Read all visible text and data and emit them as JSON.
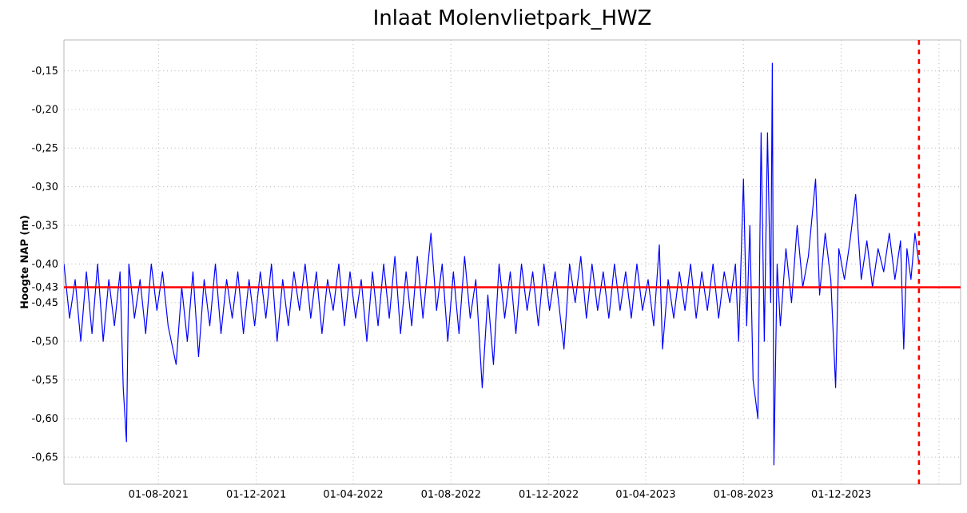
{
  "chart_data": {
    "type": "line",
    "title": "Inlaat Molenvlietpark_HWZ",
    "ylabel": "Hoogte NAP (m)",
    "color": "#0000ff",
    "grid": true,
    "xlim": [
      "2021-04-05",
      "2024-04-28"
    ],
    "ylim": [
      -0.685,
      -0.11
    ],
    "xticks": [
      {
        "value": "2021-08-01",
        "label": "01-08-2021"
      },
      {
        "value": "2021-12-01",
        "label": "01-12-2021"
      },
      {
        "value": "2022-04-01",
        "label": "01-04-2022"
      },
      {
        "value": "2022-08-01",
        "label": "01-08-2022"
      },
      {
        "value": "2022-12-01",
        "label": "01-12-2022"
      },
      {
        "value": "2023-04-01",
        "label": "01-04-2023"
      },
      {
        "value": "2023-08-01",
        "label": "01-08-2023"
      },
      {
        "value": "2023-12-01",
        "label": "01-12-2023"
      },
      {
        "value": "2024-04-01",
        "label": null
      }
    ],
    "yticks": [
      {
        "value": -0.15,
        "label": "-0,15"
      },
      {
        "value": -0.2,
        "label": "-0,20"
      },
      {
        "value": -0.25,
        "label": "-0,25"
      },
      {
        "value": -0.3,
        "label": "-0,30"
      },
      {
        "value": -0.35,
        "label": "-0,35"
      },
      {
        "value": -0.4,
        "label": "-0,40"
      },
      {
        "value": -0.43,
        "label": "-0,43"
      },
      {
        "value": -0.45,
        "label": "-0,45"
      },
      {
        "value": -0.5,
        "label": "-0,50"
      },
      {
        "value": -0.55,
        "label": "-0,55"
      },
      {
        "value": -0.6,
        "label": "-0,60"
      },
      {
        "value": -0.65,
        "label": "-0,65"
      }
    ],
    "ref_lines": [
      {
        "axis": "y",
        "value": -0.43,
        "color": "#ff0000",
        "line_style": "solid"
      },
      {
        "axis": "x",
        "value": "2024-03-07",
        "color": "#ff0000",
        "line_style": "dashed"
      }
    ],
    "x": [
      "2021-04-05",
      "2021-04-12",
      "2021-04-19",
      "2021-04-26",
      "2021-05-03",
      "2021-05-10",
      "2021-05-17",
      "2021-05-24",
      "2021-05-31",
      "2021-06-07",
      "2021-06-14",
      "2021-06-18",
      "2021-06-22",
      "2021-06-25",
      "2021-07-02",
      "2021-07-09",
      "2021-07-16",
      "2021-07-23",
      "2021-07-30",
      "2021-08-06",
      "2021-08-13",
      "2021-08-23",
      "2021-08-30",
      "2021-09-06",
      "2021-09-13",
      "2021-09-20",
      "2021-09-27",
      "2021-10-04",
      "2021-10-11",
      "2021-10-18",
      "2021-10-25",
      "2021-11-01",
      "2021-11-08",
      "2021-11-15",
      "2021-11-22",
      "2021-11-29",
      "2021-12-06",
      "2021-12-13",
      "2021-12-20",
      "2021-12-27",
      "2022-01-03",
      "2022-01-10",
      "2022-01-17",
      "2022-01-24",
      "2022-01-31",
      "2022-02-07",
      "2022-02-14",
      "2022-02-21",
      "2022-02-28",
      "2022-03-07",
      "2022-03-14",
      "2022-03-21",
      "2022-03-28",
      "2022-04-04",
      "2022-04-11",
      "2022-04-18",
      "2022-04-25",
      "2022-05-02",
      "2022-05-09",
      "2022-05-16",
      "2022-05-23",
      "2022-05-30",
      "2022-06-06",
      "2022-06-13",
      "2022-06-20",
      "2022-06-27",
      "2022-07-07",
      "2022-07-14",
      "2022-07-21",
      "2022-07-28",
      "2022-08-04",
      "2022-08-11",
      "2022-08-18",
      "2022-08-25",
      "2022-09-01",
      "2022-09-09",
      "2022-09-16",
      "2022-09-23",
      "2022-09-30",
      "2022-10-07",
      "2022-10-14",
      "2022-10-21",
      "2022-10-28",
      "2022-11-04",
      "2022-11-11",
      "2022-11-18",
      "2022-11-25",
      "2022-12-02",
      "2022-12-09",
      "2022-12-20",
      "2022-12-27",
      "2023-01-03",
      "2023-01-10",
      "2023-01-17",
      "2023-01-24",
      "2023-01-31",
      "2023-02-07",
      "2023-02-14",
      "2023-02-21",
      "2023-02-28",
      "2023-03-07",
      "2023-03-14",
      "2023-03-21",
      "2023-03-28",
      "2023-04-04",
      "2023-04-11",
      "2023-04-18",
      "2023-04-22",
      "2023-04-29",
      "2023-05-06",
      "2023-05-13",
      "2023-05-20",
      "2023-05-27",
      "2023-06-03",
      "2023-06-10",
      "2023-06-17",
      "2023-06-24",
      "2023-07-01",
      "2023-07-08",
      "2023-07-15",
      "2023-07-22",
      "2023-07-26",
      "2023-08-01",
      "2023-08-05",
      "2023-08-09",
      "2023-08-13",
      "2023-08-19",
      "2023-08-23",
      "2023-08-27",
      "2023-08-31",
      "2023-09-04",
      "2023-09-06",
      "2023-09-08",
      "2023-09-12",
      "2023-09-16",
      "2023-09-23",
      "2023-09-30",
      "2023-10-07",
      "2023-10-14",
      "2023-10-21",
      "2023-10-30",
      "2023-11-04",
      "2023-11-11",
      "2023-11-18",
      "2023-11-24",
      "2023-11-28",
      "2023-12-05",
      "2023-12-12",
      "2023-12-19",
      "2023-12-26",
      "2024-01-02",
      "2024-01-09",
      "2024-01-16",
      "2024-01-23",
      "2024-01-30",
      "2024-02-06",
      "2024-02-13",
      "2024-02-17",
      "2024-02-21",
      "2024-02-26",
      "2024-03-02",
      "2024-03-07"
    ],
    "values": [
      -0.4,
      -0.47,
      -0.42,
      -0.5,
      -0.41,
      -0.49,
      -0.4,
      -0.5,
      -0.42,
      -0.48,
      -0.41,
      -0.56,
      -0.63,
      -0.4,
      -0.47,
      -0.42,
      -0.49,
      -0.4,
      -0.46,
      -0.41,
      -0.48,
      -0.53,
      -0.43,
      -0.5,
      -0.41,
      -0.52,
      -0.42,
      -0.48,
      -0.4,
      -0.49,
      -0.42,
      -0.47,
      -0.41,
      -0.49,
      -0.42,
      -0.48,
      -0.41,
      -0.47,
      -0.4,
      -0.5,
      -0.42,
      -0.48,
      -0.41,
      -0.46,
      -0.4,
      -0.47,
      -0.41,
      -0.49,
      -0.42,
      -0.46,
      -0.4,
      -0.48,
      -0.41,
      -0.47,
      -0.42,
      -0.5,
      -0.41,
      -0.48,
      -0.4,
      -0.47,
      -0.39,
      -0.49,
      -0.41,
      -0.48,
      -0.39,
      -0.47,
      -0.36,
      -0.46,
      -0.4,
      -0.5,
      -0.41,
      -0.49,
      -0.39,
      -0.47,
      -0.42,
      -0.56,
      -0.44,
      -0.53,
      -0.4,
      -0.47,
      -0.41,
      -0.49,
      -0.4,
      -0.46,
      -0.41,
      -0.48,
      -0.4,
      -0.46,
      -0.41,
      -0.51,
      -0.4,
      -0.45,
      -0.39,
      -0.47,
      -0.4,
      -0.46,
      -0.41,
      -0.47,
      -0.4,
      -0.46,
      -0.41,
      -0.47,
      -0.4,
      -0.46,
      -0.42,
      -0.48,
      -0.375,
      -0.51,
      -0.42,
      -0.47,
      -0.41,
      -0.46,
      -0.4,
      -0.47,
      -0.41,
      -0.46,
      -0.4,
      -0.47,
      -0.41,
      -0.45,
      -0.4,
      -0.5,
      -0.29,
      -0.48,
      -0.35,
      -0.55,
      -0.6,
      -0.23,
      -0.5,
      -0.23,
      -0.45,
      -0.14,
      -0.66,
      -0.4,
      -0.48,
      -0.38,
      -0.45,
      -0.35,
      -0.43,
      -0.39,
      -0.29,
      -0.44,
      -0.36,
      -0.42,
      -0.56,
      -0.38,
      -0.42,
      -0.37,
      -0.31,
      -0.42,
      -0.37,
      -0.43,
      -0.38,
      -0.41,
      -0.36,
      -0.42,
      -0.37,
      -0.51,
      -0.38,
      -0.42,
      -0.36,
      -0.4
    ]
  }
}
